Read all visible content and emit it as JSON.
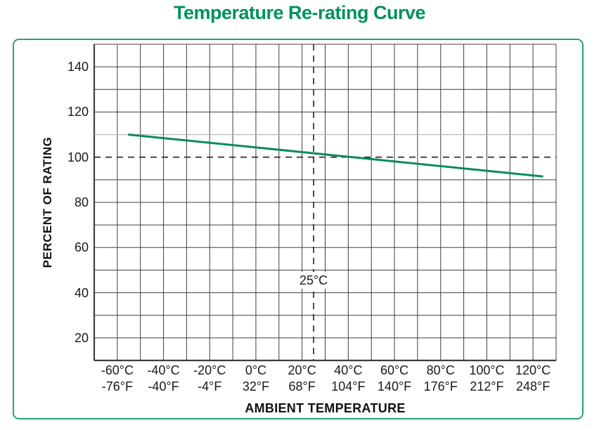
{
  "title": "Temperature Re-rating Curve",
  "colors": {
    "title_green": "#00925a",
    "frame_green": "#2aa36e",
    "curve_green": "#0b8a5c",
    "grid": "#3f3f3f",
    "light_grid": "#b5b5b5",
    "dashed": "#222222"
  },
  "chart_data": {
    "type": "line",
    "title": "Temperature Re-rating Curve",
    "xlabel": "AMBIENT TEMPERATURE",
    "ylabel": "PERCENT OF RATING",
    "x_axis": {
      "min": -70,
      "max": 130,
      "grid_step": 10,
      "unit": "°C"
    },
    "y_axis": {
      "min": 10,
      "max": 150,
      "grid_step": 10,
      "unit": "% of rating"
    },
    "x_ticks": [
      {
        "value": -60,
        "celsius": "-60°C",
        "fahrenheit": "-76°F"
      },
      {
        "value": -40,
        "celsius": "-40°C",
        "fahrenheit": "-40°F"
      },
      {
        "value": -20,
        "celsius": "-20°C",
        "fahrenheit": "-4°F"
      },
      {
        "value": 0,
        "celsius": "0°C",
        "fahrenheit": "32°F"
      },
      {
        "value": 20,
        "celsius": "20°C",
        "fahrenheit": "68°F"
      },
      {
        "value": 40,
        "celsius": "40°C",
        "fahrenheit": "104°F"
      },
      {
        "value": 60,
        "celsius": "60°C",
        "fahrenheit": "140°F"
      },
      {
        "value": 80,
        "celsius": "80°C",
        "fahrenheit": "176°F"
      },
      {
        "value": 100,
        "celsius": "100°C",
        "fahrenheit": "212°F"
      },
      {
        "value": 120,
        "celsius": "120°C",
        "fahrenheit": "248°F"
      }
    ],
    "y_ticks": [
      {
        "value": 20,
        "label": "20"
      },
      {
        "value": 40,
        "label": "40"
      },
      {
        "value": 60,
        "label": "60"
      },
      {
        "value": 80,
        "label": "80"
      },
      {
        "value": 100,
        "label": "100"
      },
      {
        "value": 120,
        "label": "120"
      },
      {
        "value": 140,
        "label": "140"
      }
    ],
    "series": [
      {
        "name": "temperature-re-rating-curve",
        "points": [
          [
            -55,
            110
          ],
          [
            124,
            91.5
          ]
        ]
      }
    ],
    "reference_lines": {
      "dashed_horizontal_y": 100,
      "dashed_vertical_x": 25,
      "light_horizontal_y": 110
    },
    "annotation": {
      "text": "25°C",
      "x": 25,
      "y": 45.5
    },
    "legend": "none",
    "grid": "on"
  }
}
